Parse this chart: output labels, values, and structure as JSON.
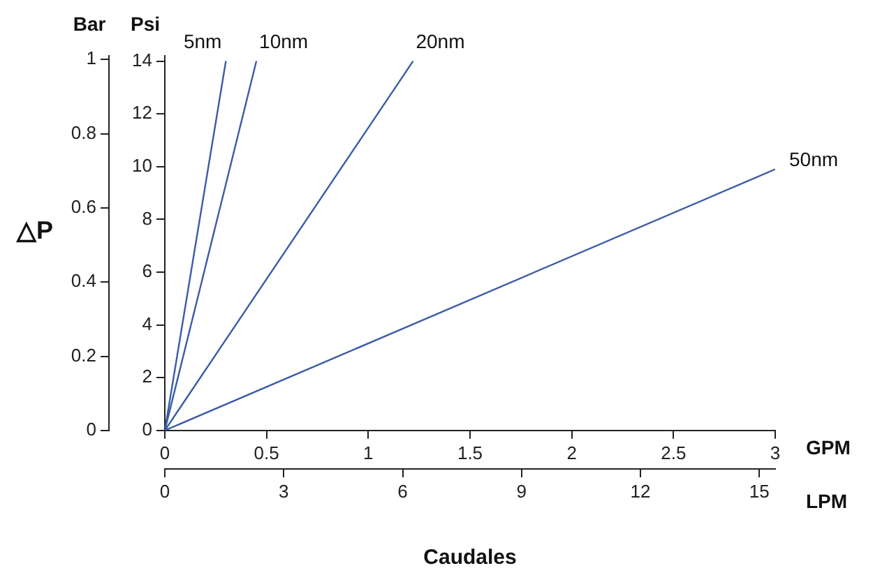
{
  "chart_data": {
    "type": "line",
    "xlabel": "GPM",
    "x2label": "LPM",
    "ylabel": "Psi",
    "y2label": "Bar",
    "annotations": [
      "△P",
      "Caudales"
    ],
    "xlim": [
      0,
      3
    ],
    "xticks": [
      0,
      0.5,
      1,
      1.5,
      2,
      2.5,
      3
    ],
    "x2lim": [
      0,
      15.4
    ],
    "x2ticks": [
      0,
      3,
      6,
      9,
      12,
      15
    ],
    "ylim": [
      0,
      14.2
    ],
    "yticks": [
      0,
      2,
      4,
      6,
      8,
      10,
      12,
      14
    ],
    "y2lim": [
      0,
      1.01
    ],
    "y2ticks": [
      0,
      0.2,
      0.4,
      0.6,
      0.8,
      1
    ],
    "grid": false,
    "legend": false,
    "marker": "none",
    "line_style": "solid",
    "series": [
      {
        "name": "5nm",
        "color": "#3a5ba8",
        "x": [
          0,
          0.3
        ],
        "values": [
          0,
          14
        ]
      },
      {
        "name": "10nm",
        "color": "#3a5ba8",
        "x": [
          0,
          0.45
        ],
        "values": [
          0,
          14
        ]
      },
      {
        "name": "20nm",
        "color": "#3a5ba8",
        "x": [
          0,
          1.22
        ],
        "values": [
          0,
          14
        ]
      },
      {
        "name": "50nm",
        "color": "#3a5ba8",
        "x": [
          0,
          3
        ],
        "values": [
          0,
          9.9
        ]
      }
    ]
  }
}
